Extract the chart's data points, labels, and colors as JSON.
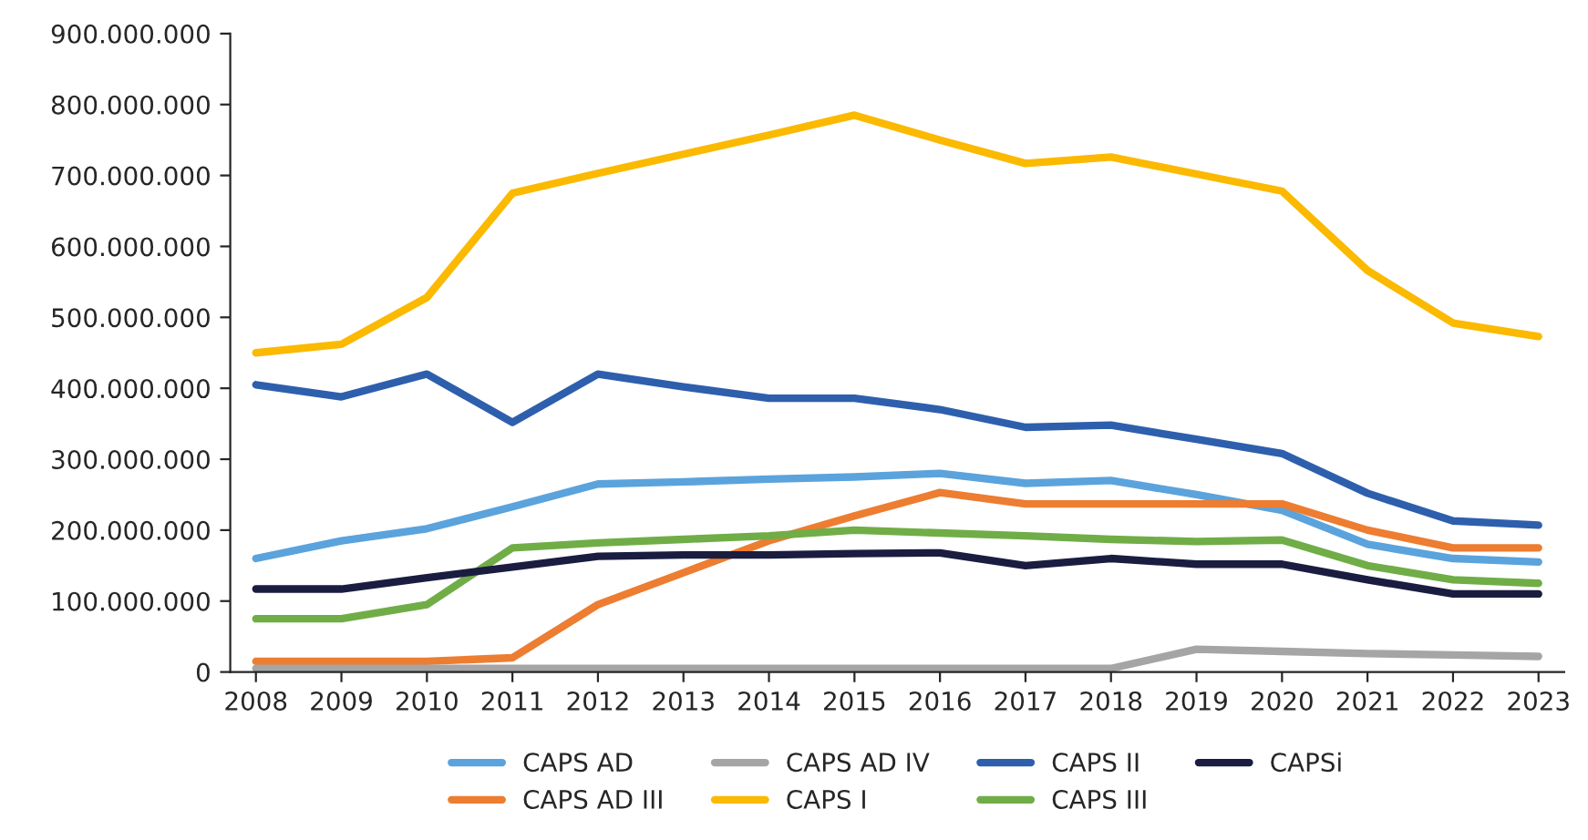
{
  "chart_data": {
    "type": "line",
    "categories": [
      "2008",
      "2009",
      "2010",
      "2011",
      "2012",
      "2013",
      "2014",
      "2015",
      "2016",
      "2017",
      "2018",
      "2019",
      "2020",
      "2021",
      "2022",
      "2023"
    ],
    "series": [
      {
        "name": "CAPS AD",
        "color": "#5ba3dc",
        "values": [
          160000000,
          185000000,
          202000000,
          233000000,
          265000000,
          268000000,
          272000000,
          275000000,
          280000000,
          266000000,
          270000000,
          250000000,
          228000000,
          180000000,
          160000000,
          155000000
        ]
      },
      {
        "name": "CAPS AD III",
        "color": "#ed7d31",
        "values": [
          15000000,
          15000000,
          15000000,
          20000000,
          95000000,
          140000000,
          185000000,
          220000000,
          253000000,
          237000000,
          237000000,
          237000000,
          237000000,
          200000000,
          175000000,
          175000000
        ]
      },
      {
        "name": "CAPS AD IV",
        "color": "#a5a5a5",
        "values": [
          5000000,
          5000000,
          5000000,
          5000000,
          5000000,
          5000000,
          5000000,
          5000000,
          5000000,
          5000000,
          5000000,
          32000000,
          29000000,
          26000000,
          24000000,
          22000000
        ]
      },
      {
        "name": "CAPS I",
        "color": "#fbb900",
        "values": [
          450000000,
          462000000,
          528000000,
          675000000,
          703000000,
          730000000,
          757000000,
          785000000,
          750000000,
          717000000,
          726000000,
          702000000,
          678000000,
          566000000,
          492000000,
          473000000
        ]
      },
      {
        "name": "CAPS II",
        "color": "#2e5fad",
        "values": [
          405000000,
          388000000,
          420000000,
          352000000,
          420000000,
          402000000,
          386000000,
          386000000,
          370000000,
          345000000,
          348000000,
          328000000,
          308000000,
          252000000,
          213000000,
          207000000
        ]
      },
      {
        "name": "CAPS III",
        "color": "#70ad47",
        "values": [
          75000000,
          75000000,
          95000000,
          175000000,
          182000000,
          187000000,
          192000000,
          200000000,
          196000000,
          192000000,
          187000000,
          184000000,
          186000000,
          150000000,
          130000000,
          125000000
        ]
      },
      {
        "name": "CAPSi",
        "color": "#1a1d40",
        "values": [
          117000000,
          117000000,
          133000000,
          148000000,
          163000000,
          165000000,
          165000000,
          167000000,
          168000000,
          150000000,
          160000000,
          152000000,
          152000000,
          130000000,
          110000000,
          110000000
        ]
      }
    ],
    "ylim": [
      0,
      900000000
    ],
    "yticks": [
      {
        "value": 0,
        "label": "0"
      },
      {
        "value": 100000000,
        "label": "100.000.000"
      },
      {
        "value": 200000000,
        "label": "200.000.000"
      },
      {
        "value": 300000000,
        "label": "300.000.000"
      },
      {
        "value": 400000000,
        "label": "400.000.000"
      },
      {
        "value": 500000000,
        "label": "500.000.000"
      },
      {
        "value": 600000000,
        "label": "600.000.000"
      },
      {
        "value": 700000000,
        "label": "700.000.000"
      },
      {
        "value": 800000000,
        "label": "800.000.000"
      },
      {
        "value": 900000000,
        "label": "900.000.000"
      }
    ],
    "legend": "bottom",
    "grid": false,
    "marker": "none",
    "line_style": "solid"
  }
}
